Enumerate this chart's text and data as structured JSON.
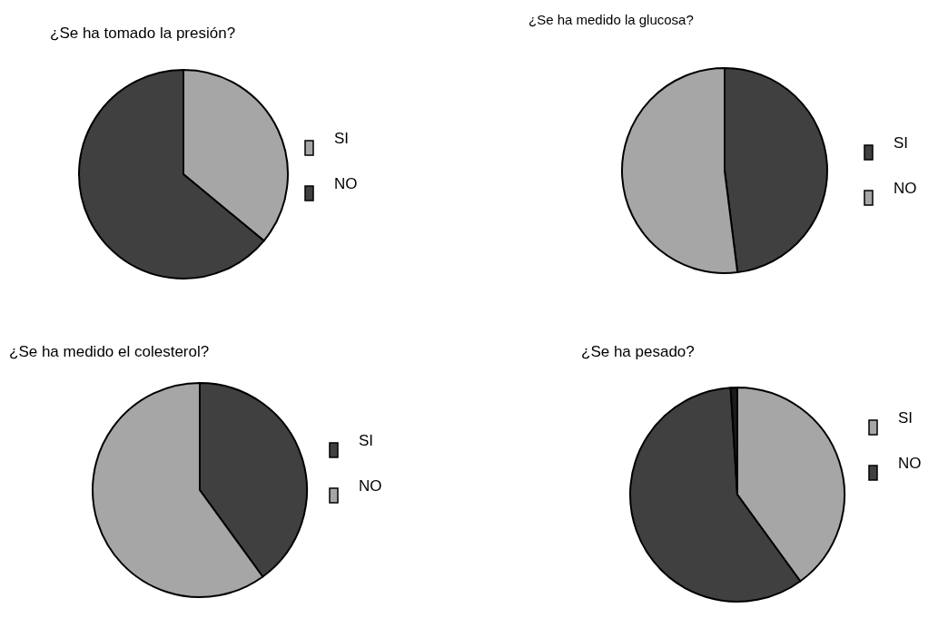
{
  "chart_data": [
    {
      "type": "pie",
      "title": "¿Se ha tomado la presión?",
      "categories": [
        "SI",
        "NO"
      ],
      "values": [
        36,
        64
      ],
      "colors": [
        "#a6a6a6",
        "#404040"
      ],
      "legend": "right"
    },
    {
      "type": "pie",
      "title": "¿Se ha medido la glucosa?",
      "categories": [
        "SI",
        "NO"
      ],
      "values": [
        48,
        52
      ],
      "colors": [
        "#404040",
        "#a6a6a6"
      ],
      "legend": "right"
    },
    {
      "type": "pie",
      "title": "¿Se ha medido el colesterol?",
      "categories": [
        "SI",
        "NO"
      ],
      "values": [
        40,
        60
      ],
      "colors": [
        "#404040",
        "#a6a6a6"
      ],
      "legend": "right"
    },
    {
      "type": "pie",
      "title": "¿Se ha pesado?",
      "categories": [
        "SI",
        "NO",
        null
      ],
      "values": [
        40,
        59,
        1
      ],
      "colors": [
        "#a6a6a6",
        "#404040",
        "#1a1a1a"
      ],
      "legend": "right"
    }
  ]
}
